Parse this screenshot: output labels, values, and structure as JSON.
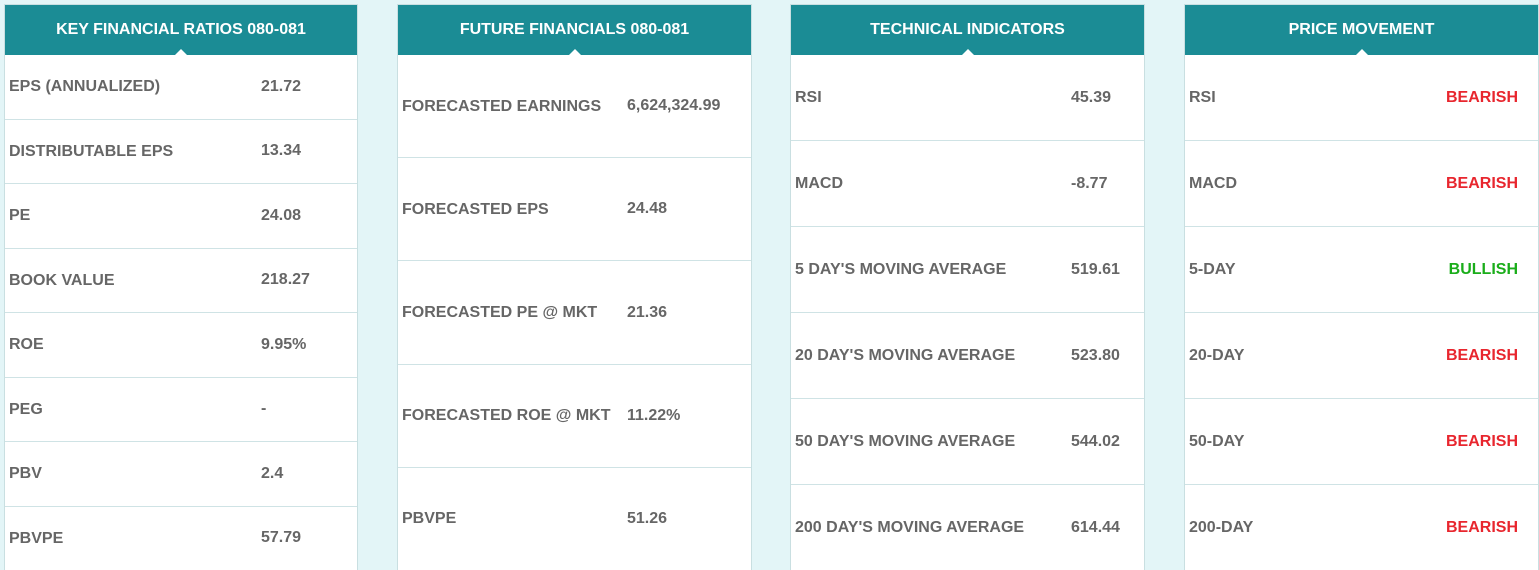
{
  "key_ratios": {
    "title": "KEY FINANCIAL RATIOS 080-081",
    "rows": [
      {
        "label": "EPS (ANNUALIZED)",
        "value": "21.72"
      },
      {
        "label": "DISTRIBUTABLE EPS",
        "value": "13.34"
      },
      {
        "label": "PE",
        "value": "24.08"
      },
      {
        "label": "BOOK VALUE",
        "value": "218.27"
      },
      {
        "label": "ROE",
        "value": "9.95%"
      },
      {
        "label": "PEG",
        "value": "-"
      },
      {
        "label": "PBV",
        "value": "2.4"
      },
      {
        "label": "PBVPE",
        "value": "57.79"
      }
    ]
  },
  "future_financials": {
    "title": "FUTURE FINANCIALS 080-081",
    "rows": [
      {
        "label": "FORECASTED EARNINGS",
        "value": "6,624,324.99"
      },
      {
        "label": "FORECASTED EPS",
        "value": "24.48"
      },
      {
        "label": "FORECASTED PE @ MKT",
        "value": "21.36"
      },
      {
        "label": "FORECASTED ROE @ MKT",
        "value": "11.22%"
      },
      {
        "label": "PBVPE",
        "value": "51.26"
      }
    ]
  },
  "technical_indicators": {
    "title": "TECHNICAL INDICATORS",
    "rows": [
      {
        "label": "RSI",
        "value": "45.39"
      },
      {
        "label": "MACD",
        "value": "-8.77"
      },
      {
        "label": "5 DAY'S MOVING AVERAGE",
        "value": "519.61"
      },
      {
        "label": "20 DAY'S MOVING AVERAGE",
        "value": "523.80"
      },
      {
        "label": "50 DAY'S MOVING AVERAGE",
        "value": "544.02"
      },
      {
        "label": "200 DAY'S MOVING AVERAGE",
        "value": "614.44"
      }
    ]
  },
  "price_movement": {
    "title": "PRICE MOVEMENT",
    "rows": [
      {
        "label": "RSI",
        "signal": "BEARISH",
        "color": "#e8262e"
      },
      {
        "label": "MACD",
        "signal": "BEARISH",
        "color": "#e8262e"
      },
      {
        "label": "5-DAY",
        "signal": "BULLISH",
        "color": "#1aad1a"
      },
      {
        "label": "20-DAY",
        "signal": "BEARISH",
        "color": "#e8262e"
      },
      {
        "label": "50-DAY",
        "signal": "BEARISH",
        "color": "#e8262e"
      },
      {
        "label": "200-DAY",
        "signal": "BEARISH",
        "color": "#e8262e"
      }
    ]
  },
  "colors": {
    "header_bg": "#1b8c95",
    "bearish": "#e8262e",
    "bullish": "#1aad1a"
  }
}
